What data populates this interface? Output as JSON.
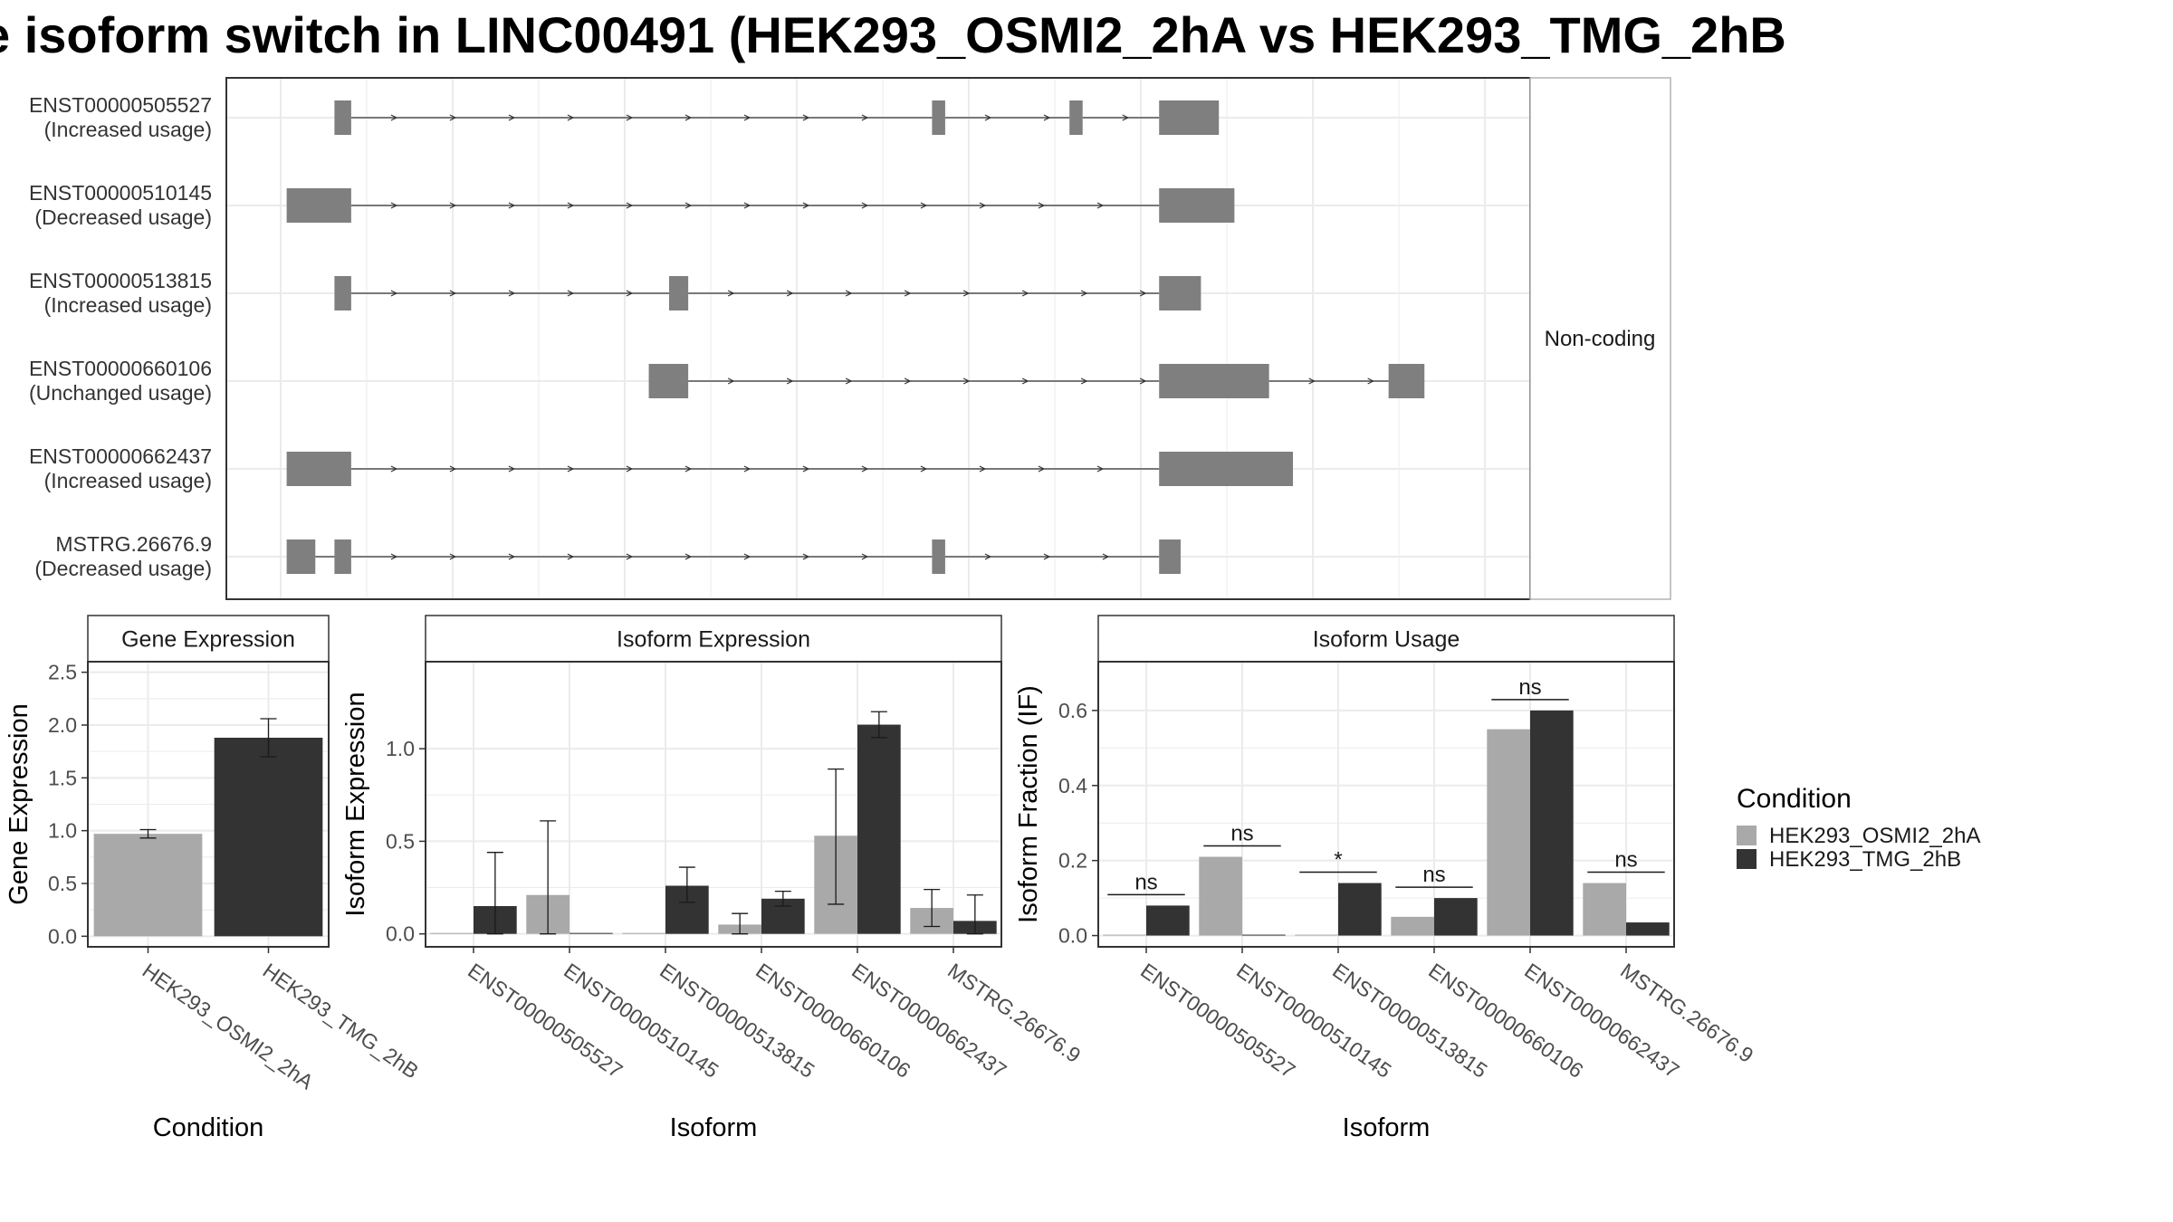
{
  "title": "e isoform switch in LINC00491 (HEK293_OSMI2_2hA vs HEK293_TMG_2hB",
  "colors": {
    "exon": "#7f7f7f",
    "intron": "#333333",
    "condA": "#a9a9a9",
    "condB": "#333333",
    "grid": "#ebebeb",
    "panel_border": "#333333",
    "strip_fill": "#ffffff"
  },
  "structure": {
    "facet_label": "Non-coding",
    "x_range": [
      0,
      1
    ],
    "isoforms": [
      {
        "name": "ENST00000505527",
        "usage": "(Increased usage)",
        "exons": [
          [
            0.045,
            0.059
          ],
          [
            0.545,
            0.556
          ],
          [
            0.66,
            0.671
          ],
          [
            0.735,
            0.785
          ]
        ]
      },
      {
        "name": "ENST00000510145",
        "usage": "(Decreased usage)",
        "exons": [
          [
            0.005,
            0.059
          ],
          [
            0.735,
            0.798
          ]
        ]
      },
      {
        "name": "ENST00000513815",
        "usage": "(Increased usage)",
        "exons": [
          [
            0.045,
            0.059
          ],
          [
            0.325,
            0.341
          ],
          [
            0.735,
            0.77
          ]
        ]
      },
      {
        "name": "ENST00000660106",
        "usage": "(Unchanged usage)",
        "exons": [
          [
            0.308,
            0.341
          ],
          [
            0.735,
            0.827
          ],
          [
            0.927,
            0.957
          ]
        ]
      },
      {
        "name": "ENST00000662437",
        "usage": "(Increased usage)",
        "exons": [
          [
            0.005,
            0.059
          ],
          [
            0.735,
            0.847
          ]
        ]
      },
      {
        "name": "MSTRG.26676.9",
        "usage": "(Decreased usage)",
        "exons": [
          [
            0.005,
            0.029
          ],
          [
            0.045,
            0.059
          ],
          [
            0.545,
            0.556
          ],
          [
            0.735,
            0.753
          ]
        ]
      }
    ]
  },
  "chart_data": [
    {
      "type": "bar",
      "title": "Gene Expression",
      "xlabel": "Condition",
      "ylabel": "Gene Expression",
      "categories": [
        "HEK293_OSMI2_2hA",
        "HEK293_TMG_2hB"
      ],
      "values": [
        0.97,
        1.88
      ],
      "errors": [
        [
          0.93,
          1.01
        ],
        [
          1.7,
          2.06
        ]
      ],
      "colors": [
        "#a9a9a9",
        "#333333"
      ],
      "yticks": [
        "0.0",
        "0.5",
        "1.0",
        "1.5",
        "2.0",
        "2.5"
      ],
      "ylim": [
        -0.1,
        2.6
      ],
      "grid": true
    },
    {
      "type": "bar",
      "title": "Isoform Expression",
      "xlabel": "Isoform",
      "ylabel": "Isoform Expression",
      "categories": [
        "ENST00000505527",
        "ENST00000510145",
        "ENST00000513815",
        "ENST00000660106",
        "ENST00000662437",
        "MSTRG.26676.9"
      ],
      "series": [
        {
          "name": "HEK293_OSMI2_2hA",
          "values": [
            0.0,
            0.21,
            0.0,
            0.05,
            0.53,
            0.14
          ],
          "errors": [
            [
              0.0,
              0.0
            ],
            [
              0.0,
              0.61
            ],
            [
              0.0,
              0.0
            ],
            [
              0.0,
              0.11
            ],
            [
              0.16,
              0.89
            ],
            [
              0.04,
              0.24
            ]
          ]
        },
        {
          "name": "HEK293_TMG_2hB",
          "values": [
            0.15,
            0.0,
            0.26,
            0.19,
            1.13,
            0.07
          ],
          "errors": [
            [
              0.0,
              0.44
            ],
            [
              0.0,
              0.0
            ],
            [
              0.17,
              0.36
            ],
            [
              0.15,
              0.23
            ],
            [
              1.06,
              1.2
            ],
            [
              0.0,
              0.21
            ]
          ]
        }
      ],
      "yticks": [
        "0.0",
        "0.5",
        "1.0"
      ],
      "ylim": [
        -0.07,
        1.47
      ],
      "grid": true
    },
    {
      "type": "bar",
      "title": "Isoform Usage",
      "xlabel": "Isoform",
      "ylabel": "Isoform Fraction (IF)",
      "categories": [
        "ENST00000505527",
        "ENST00000510145",
        "ENST00000513815",
        "ENST00000660106",
        "ENST00000662437",
        "MSTRG.26676.9"
      ],
      "series": [
        {
          "name": "HEK293_OSMI2_2hA",
          "values": [
            0.0,
            0.21,
            0.0,
            0.05,
            0.55,
            0.14
          ]
        },
        {
          "name": "HEK293_TMG_2hB",
          "values": [
            0.08,
            0.0,
            0.14,
            0.1,
            0.6,
            0.035
          ]
        }
      ],
      "significance": [
        "ns",
        "ns",
        "*",
        "ns",
        "ns",
        "ns"
      ],
      "yticks": [
        "0.0",
        "0.2",
        "0.4",
        "0.6"
      ],
      "ylim": [
        -0.03,
        0.73
      ],
      "grid": true
    }
  ],
  "legend": {
    "title": "Condition",
    "items": [
      {
        "label": "HEK293_OSMI2_2hA",
        "color": "#a9a9a9"
      },
      {
        "label": "HEK293_TMG_2hB",
        "color": "#333333"
      }
    ]
  }
}
